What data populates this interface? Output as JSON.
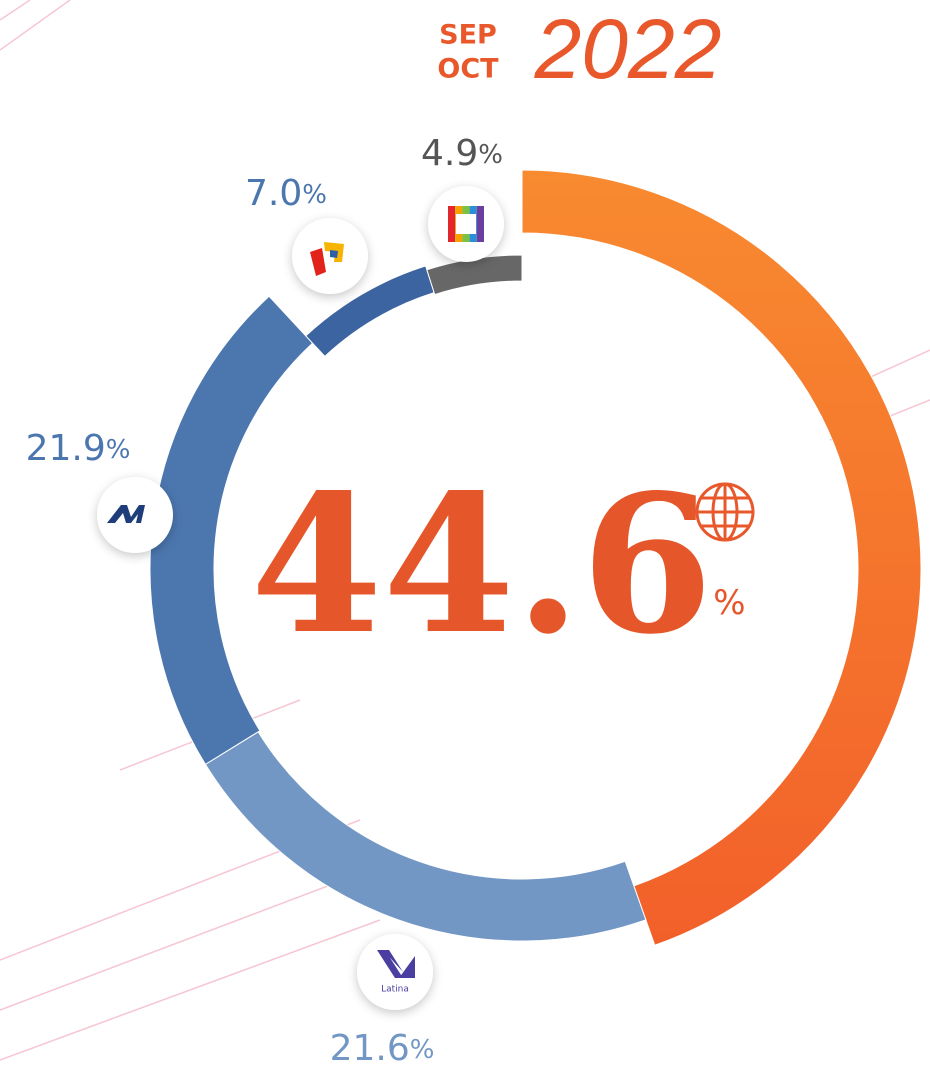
{
  "chart_data": {
    "type": "donut",
    "period": [
      "SEP",
      "OCT"
    ],
    "year": "2022",
    "categories": [
      null,
      "Latina",
      null,
      null,
      null
    ],
    "values": [
      44.6,
      21.6,
      21.9,
      7.0,
      4.9
    ],
    "value_labels": [
      "44.6%",
      "21.6%",
      "21.9%",
      "7.0%",
      "4.9%"
    ],
    "colors": [
      "#f26a2a",
      "#7397c4",
      "#4b76ae",
      "#3c64a0",
      "#676767"
    ],
    "start_angle": 0,
    "direction": "clockwise"
  }
}
